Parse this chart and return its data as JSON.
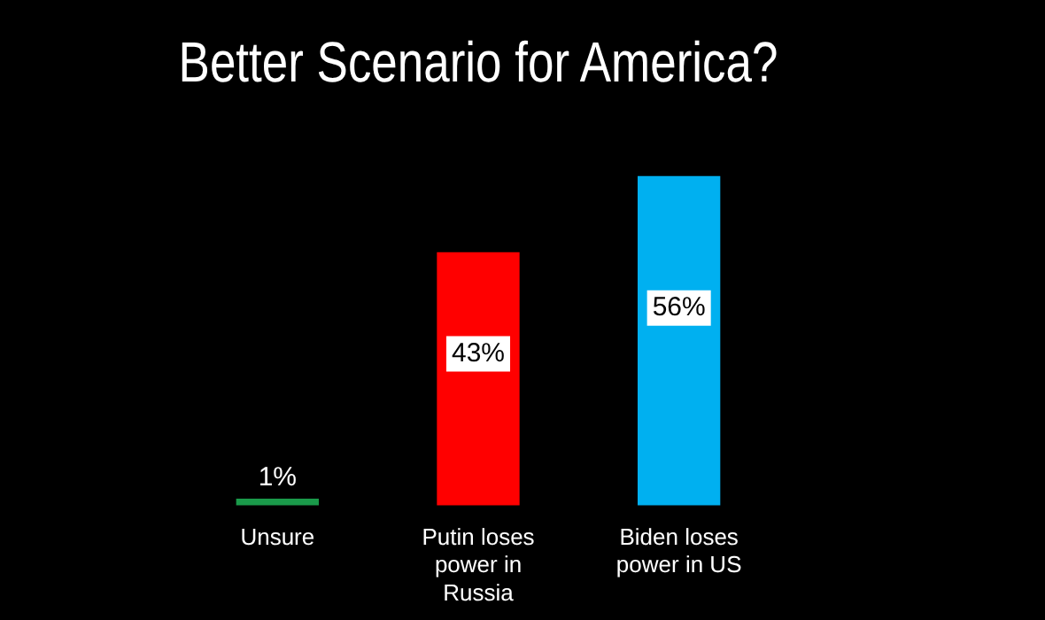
{
  "chart_data": {
    "type": "bar",
    "title": "Better Scenario for America?",
    "categories": [
      "Unsure",
      "Putin loses power in Russia",
      "Biden loses power in US"
    ],
    "values": [
      1,
      43,
      56
    ],
    "colors": [
      "#1a9a4a",
      "#ff0000",
      "#00b0f0"
    ],
    "value_labels": [
      "1%",
      "43%",
      "56%"
    ],
    "legend": false
  }
}
